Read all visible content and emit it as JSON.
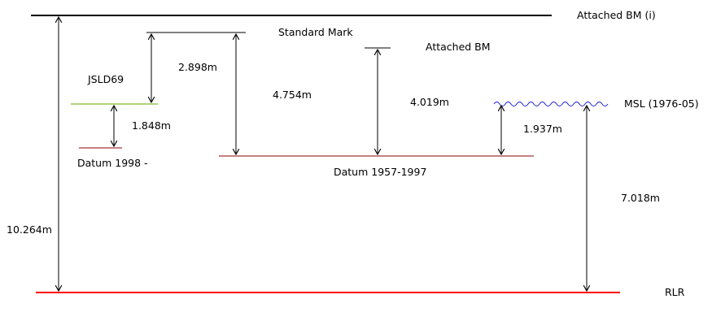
{
  "levels": {
    "attached_bm_i": "Attached BM (i)",
    "standard_mark": "Standard Mark",
    "attached_bm": "Attached BM",
    "jsld69": "JSLD69",
    "msl": "MSL (1976-05)",
    "datum_1998": "Datum 1998 -",
    "datum_1957_1997": "Datum 1957-1997",
    "rlr": "RLR"
  },
  "measurements": {
    "bm_i_to_rlr": "10.264m",
    "standard_mark_to_jsld69": "2.898m",
    "standard_mark_to_datum_1957": "4.754m",
    "attached_bm_to_datum_1957": "4.019m",
    "jsld69_to_datum_1998": "1.848m",
    "msl_to_datum_1957": "1.937m",
    "msl_to_rlr": "7.018m"
  },
  "colors": {
    "black_level": "#000000",
    "datum_dark_red": "#8b0000",
    "jsld_green": "#7fba2a",
    "msl_blue": "#1f1fd6",
    "rlr_red": "#ff0000"
  }
}
